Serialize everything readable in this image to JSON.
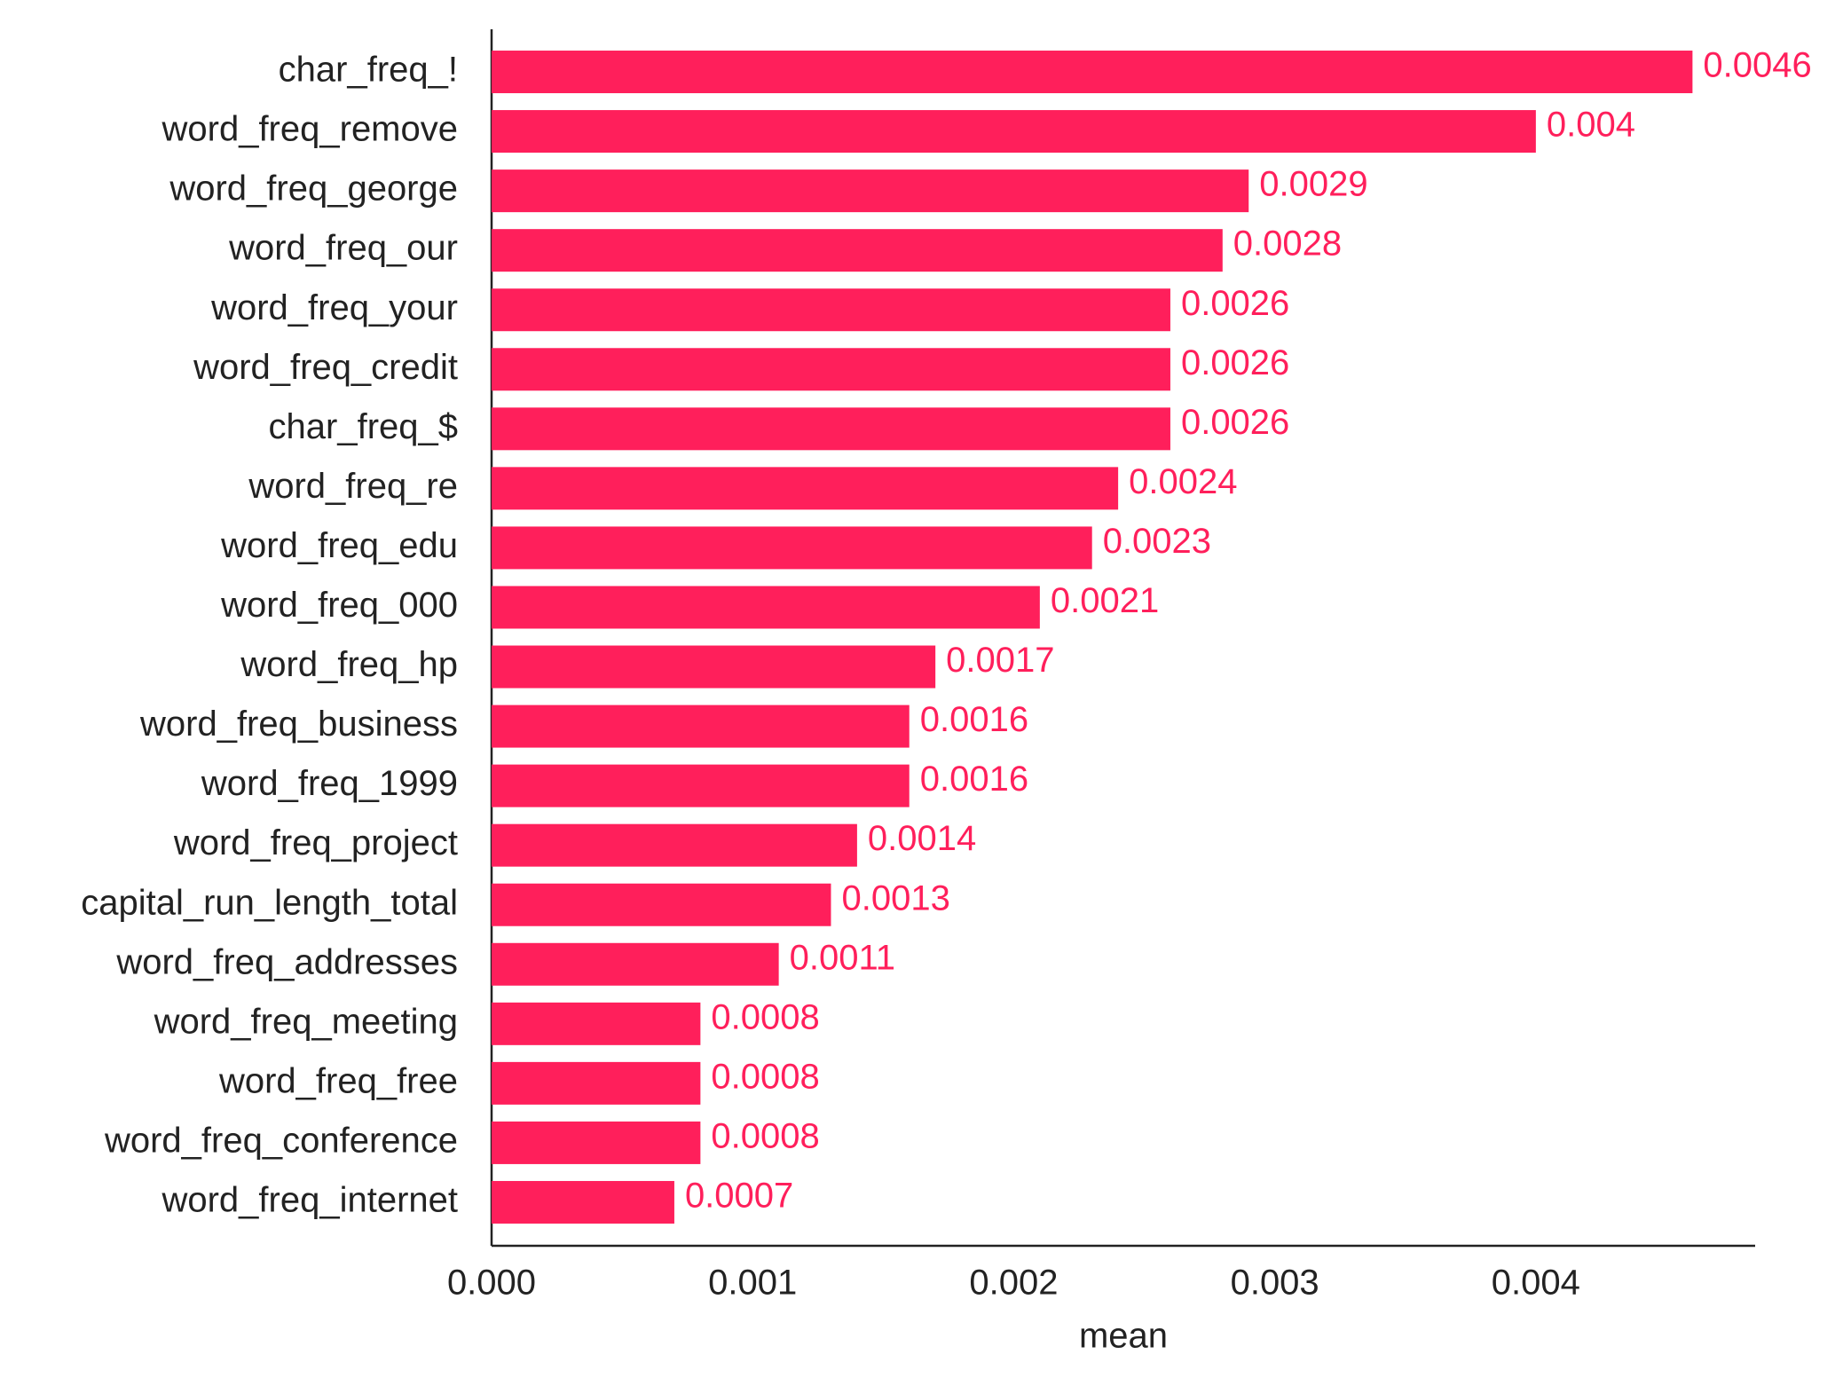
{
  "chart_data": {
    "type": "barh",
    "categories": [
      "char_freq_!",
      "word_freq_remove",
      "word_freq_george",
      "word_freq_our",
      "word_freq_your",
      "word_freq_credit",
      "char_freq_$",
      "word_freq_re",
      "word_freq_edu",
      "word_freq_000",
      "word_freq_hp",
      "word_freq_business",
      "word_freq_1999",
      "word_freq_project",
      "capital_run_length_total",
      "word_freq_addresses",
      "word_freq_meeting",
      "word_freq_free",
      "word_freq_conference",
      "word_freq_internet"
    ],
    "values": [
      0.0046,
      0.004,
      0.0029,
      0.0028,
      0.0026,
      0.0026,
      0.0026,
      0.0024,
      0.0023,
      0.0021,
      0.0017,
      0.0016,
      0.0016,
      0.0014,
      0.0013,
      0.0011,
      0.0008,
      0.0008,
      0.0008,
      0.0007
    ],
    "color": "#ff1f5b",
    "xlabel": "mean",
    "xlim": [
      0,
      0.00484
    ],
    "xticks": [
      {
        "value": 0,
        "label": "0.000"
      },
      {
        "value": 0.001,
        "label": "0.001"
      },
      {
        "value": 0.002,
        "label": "0.002"
      },
      {
        "value": 0.003,
        "label": "0.003"
      },
      {
        "value": 0.004,
        "label": "0.004"
      }
    ],
    "grid": false
  }
}
